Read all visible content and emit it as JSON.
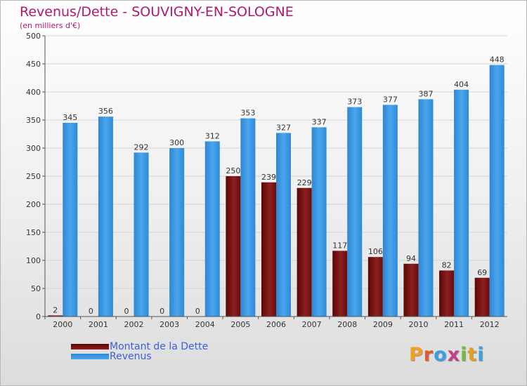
{
  "chart_data": {
    "type": "bar",
    "title": "Revenus/Dette - SOUVIGNY-EN-SOLOGNE",
    "subtitle": "(en milliers d'€)",
    "categories": [
      "2000",
      "2001",
      "2002",
      "2003",
      "2004",
      "2005",
      "2006",
      "2007",
      "2008",
      "2009",
      "2010",
      "2011",
      "2012"
    ],
    "series": [
      {
        "name": "Montant de la Dette",
        "color": "#7a1010",
        "values": [
          2,
          0,
          0,
          0,
          0,
          250,
          239,
          229,
          117,
          106,
          94,
          82,
          69
        ]
      },
      {
        "name": "Revenus",
        "color": "#3d9ce6",
        "values": [
          345,
          356,
          292,
          300,
          312,
          353,
          327,
          337,
          373,
          377,
          387,
          404,
          448
        ]
      }
    ],
    "ylim": [
      0,
      500
    ],
    "yticks": [
      0,
      50,
      100,
      150,
      200,
      250,
      300,
      350,
      400,
      450,
      500
    ],
    "grid": true,
    "legend": "bottom-left"
  },
  "logo": {
    "text": "Proxiti"
  }
}
